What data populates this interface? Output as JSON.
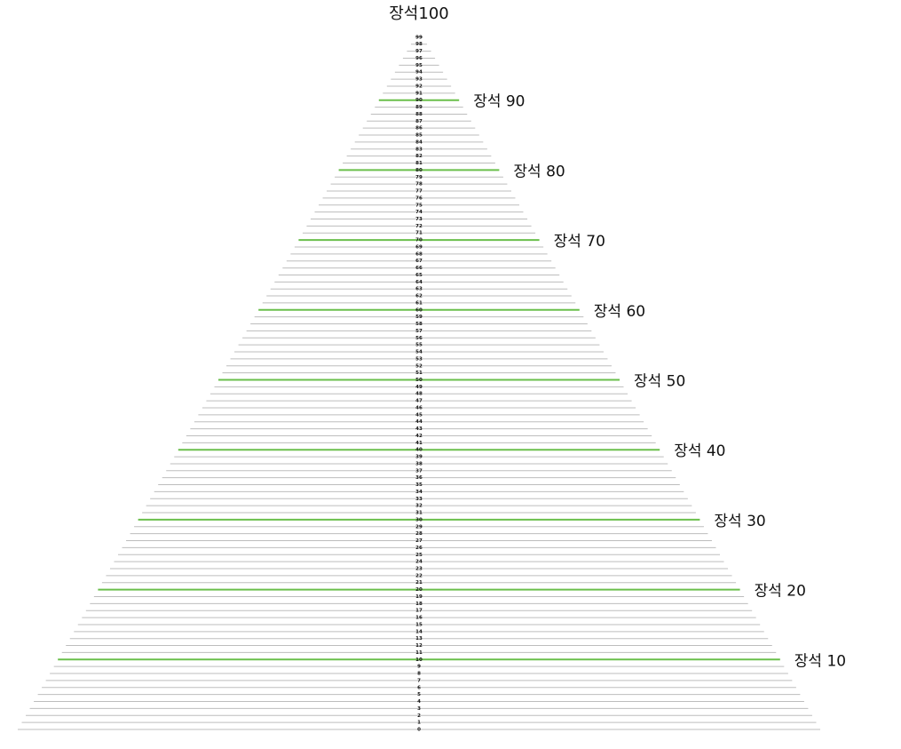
{
  "title": "장석100",
  "levels": [
    0,
    1,
    2,
    3,
    4,
    5,
    6,
    7,
    8,
    9,
    10,
    11,
    12,
    13,
    14,
    15,
    16,
    17,
    18,
    19,
    20,
    21,
    22,
    23,
    24,
    25,
    26,
    27,
    28,
    29,
    30,
    31,
    32,
    33,
    34,
    35,
    36,
    37,
    38,
    39,
    40,
    41,
    42,
    43,
    44,
    45,
    46,
    47,
    48,
    49,
    50,
    51,
    52,
    53,
    54,
    55,
    56,
    57,
    58,
    59,
    60,
    61,
    62,
    63,
    64,
    65,
    66,
    67,
    68,
    69,
    70,
    71,
    72,
    73,
    74,
    75,
    76,
    77,
    78,
    79,
    80,
    81,
    82,
    83,
    84,
    85,
    86,
    87,
    88,
    89,
    90,
    91,
    92,
    93,
    94,
    95,
    96,
    97,
    98,
    99
  ],
  "milestones": [
    "장석 10",
    "장석 20",
    "장석 30",
    "장석 40",
    "장석 50",
    "장석 60",
    "장석 70",
    "장석 80",
    "장석 90"
  ]
}
